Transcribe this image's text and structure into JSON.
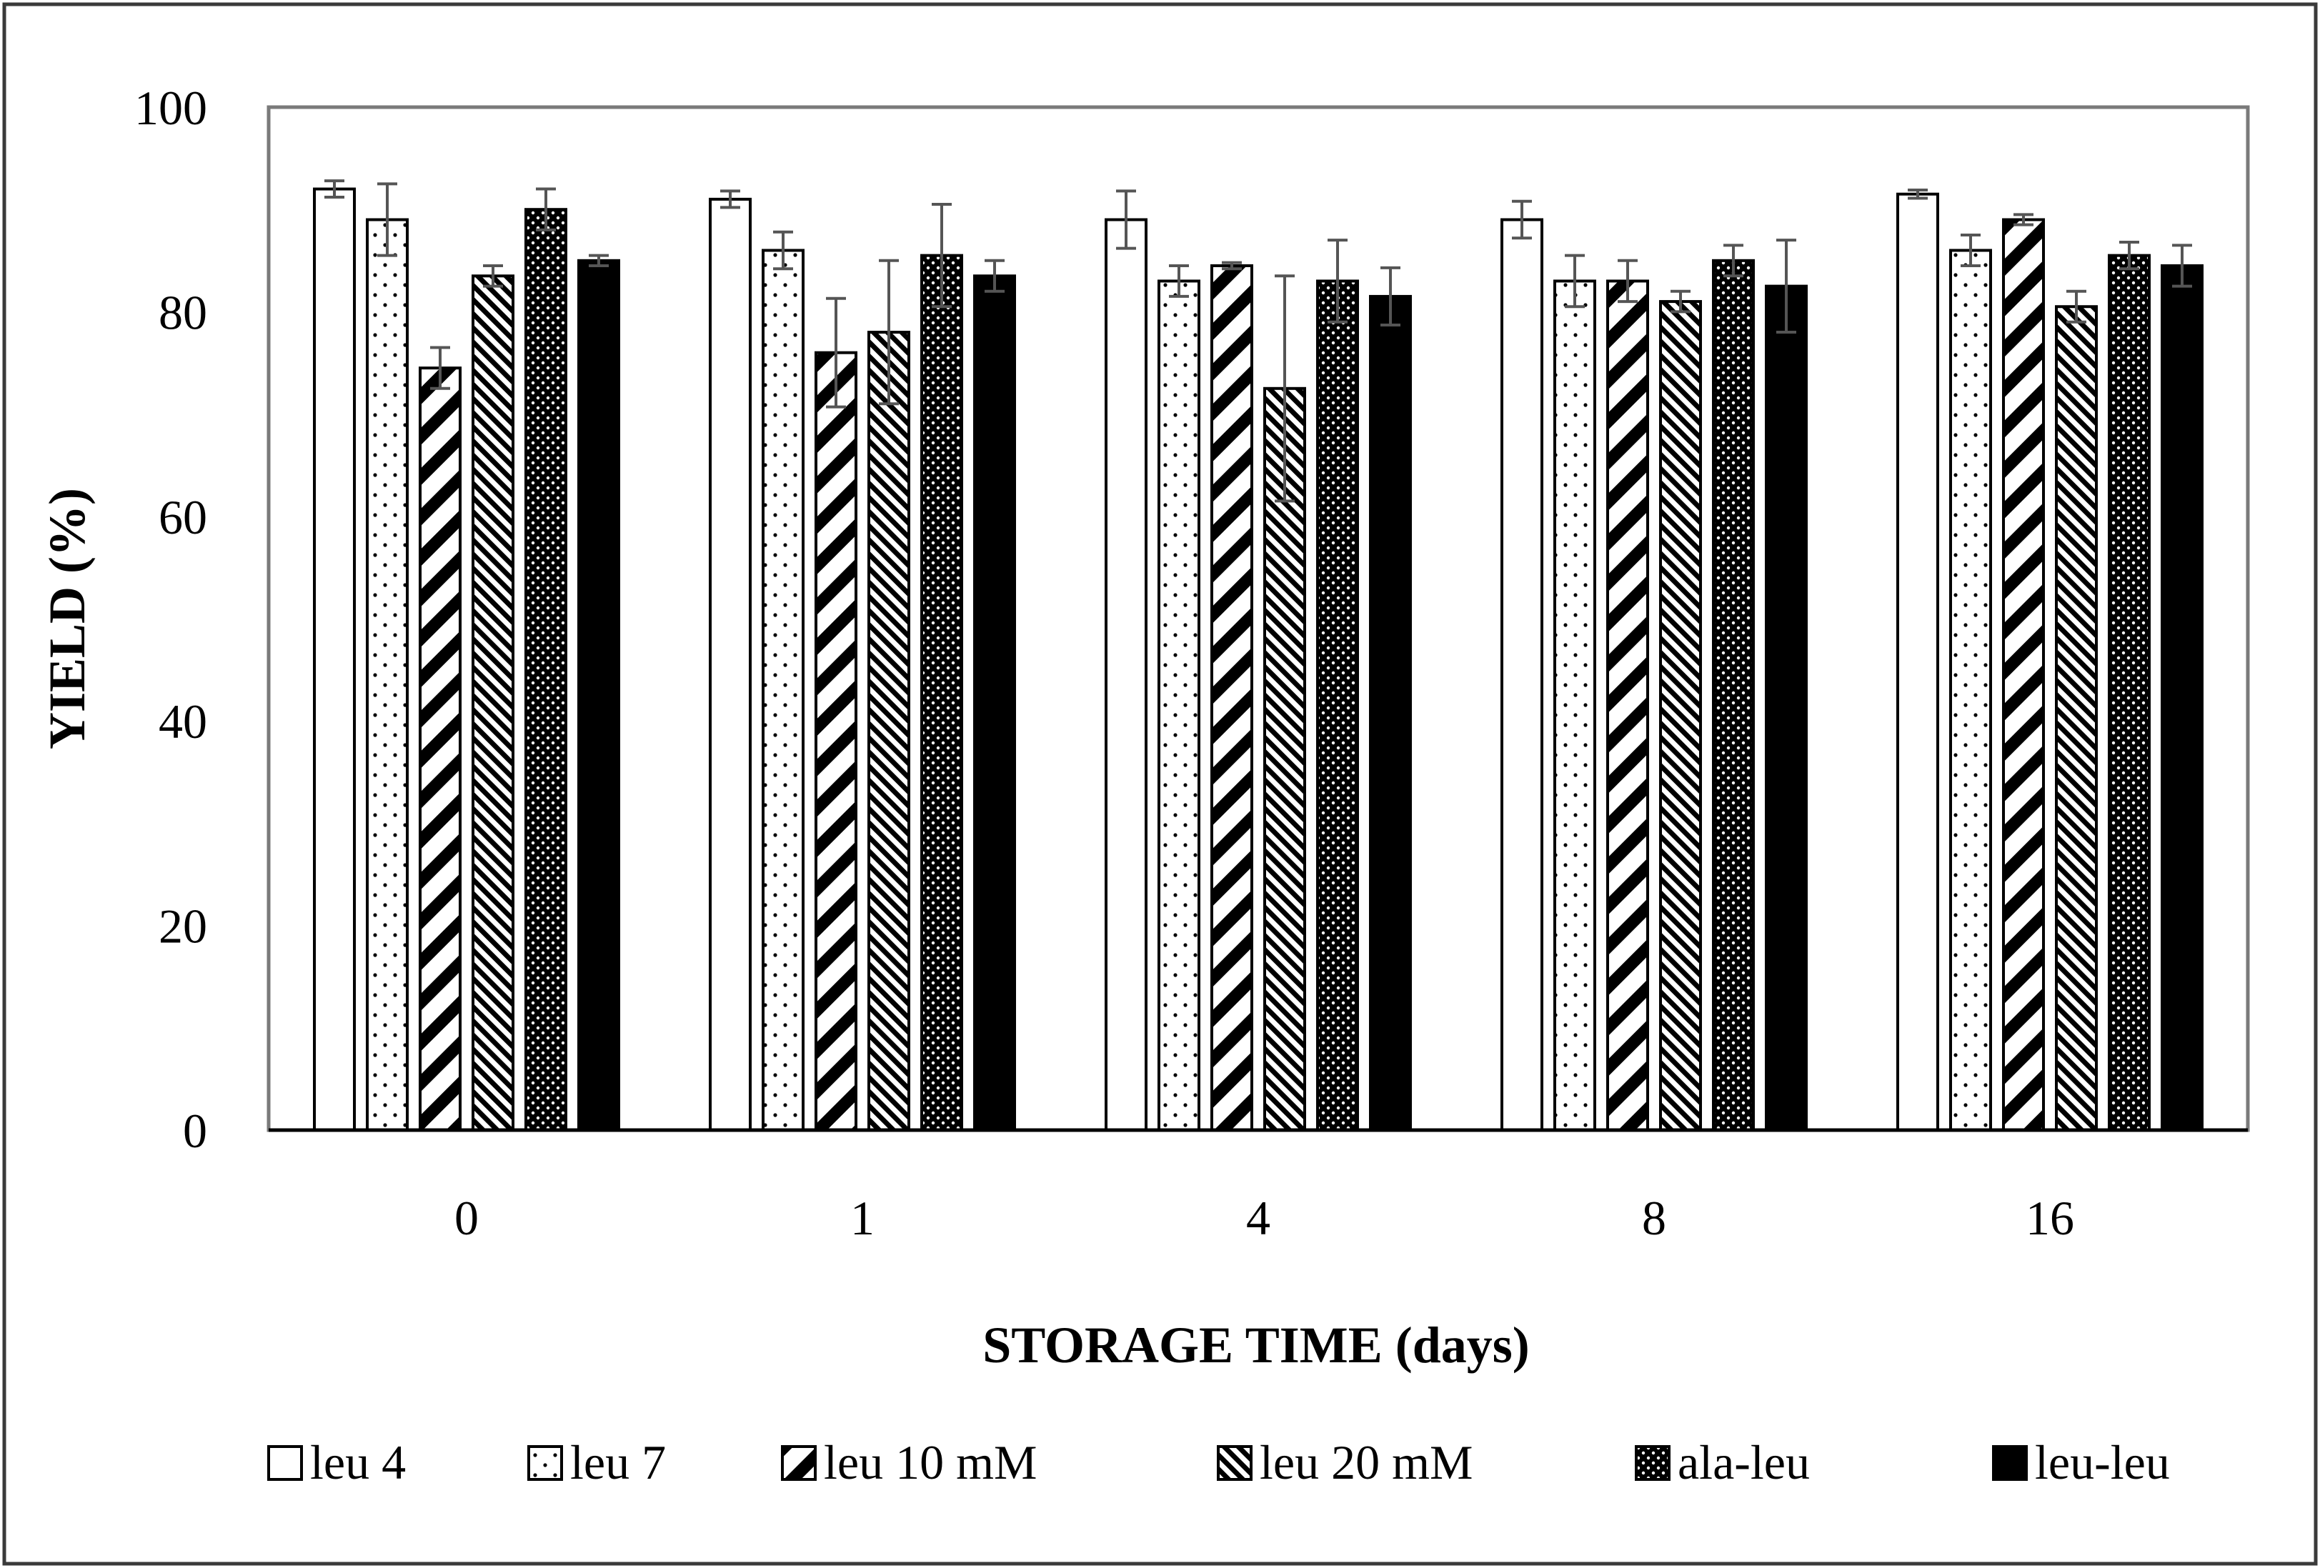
{
  "chart_data": {
    "type": "bar",
    "title": "",
    "xlabel": "STORAGE TIME (days)",
    "ylabel": "YIELD (%)",
    "categories": [
      "0",
      "1",
      "4",
      "8",
      "16"
    ],
    "ylim": [
      0,
      100
    ],
    "yticks": [
      0,
      20,
      40,
      60,
      80,
      100
    ],
    "grid": false,
    "legend_position": "bottom",
    "series": [
      {
        "name": "leu 4",
        "pattern": "white",
        "values": [
          92,
          91,
          89,
          89,
          91.5
        ],
        "errors": [
          0.8,
          0.8,
          2.8,
          1.8,
          0.4
        ]
      },
      {
        "name": "leu 7",
        "pattern": "dots",
        "values": [
          89,
          86,
          83,
          83,
          86
        ],
        "errors": [
          3.5,
          1.8,
          1.5,
          2.5,
          1.5
        ]
      },
      {
        "name": "leu 10 mM",
        "pattern": "wide-diagonal",
        "values": [
          74.5,
          76,
          84.5,
          83,
          89
        ],
        "errors": [
          2,
          5.3,
          0.3,
          2,
          0.5
        ]
      },
      {
        "name": "leu 20 mM",
        "pattern": "fine-diagonal",
        "values": [
          83.5,
          78,
          72.5,
          81,
          80.5
        ],
        "errors": [
          1,
          7,
          11,
          1,
          1.5
        ]
      },
      {
        "name": "ala-leu",
        "pattern": "dense-dots",
        "values": [
          90,
          85.5,
          83,
          85,
          85.5
        ],
        "errors": [
          2,
          5,
          4,
          1.5,
          1.3
        ]
      },
      {
        "name": "leu-leu",
        "pattern": "black",
        "values": [
          85,
          83.5,
          81.5,
          82.5,
          84.5
        ],
        "errors": [
          0.5,
          1.5,
          2.8,
          4.5,
          2
        ]
      }
    ]
  }
}
